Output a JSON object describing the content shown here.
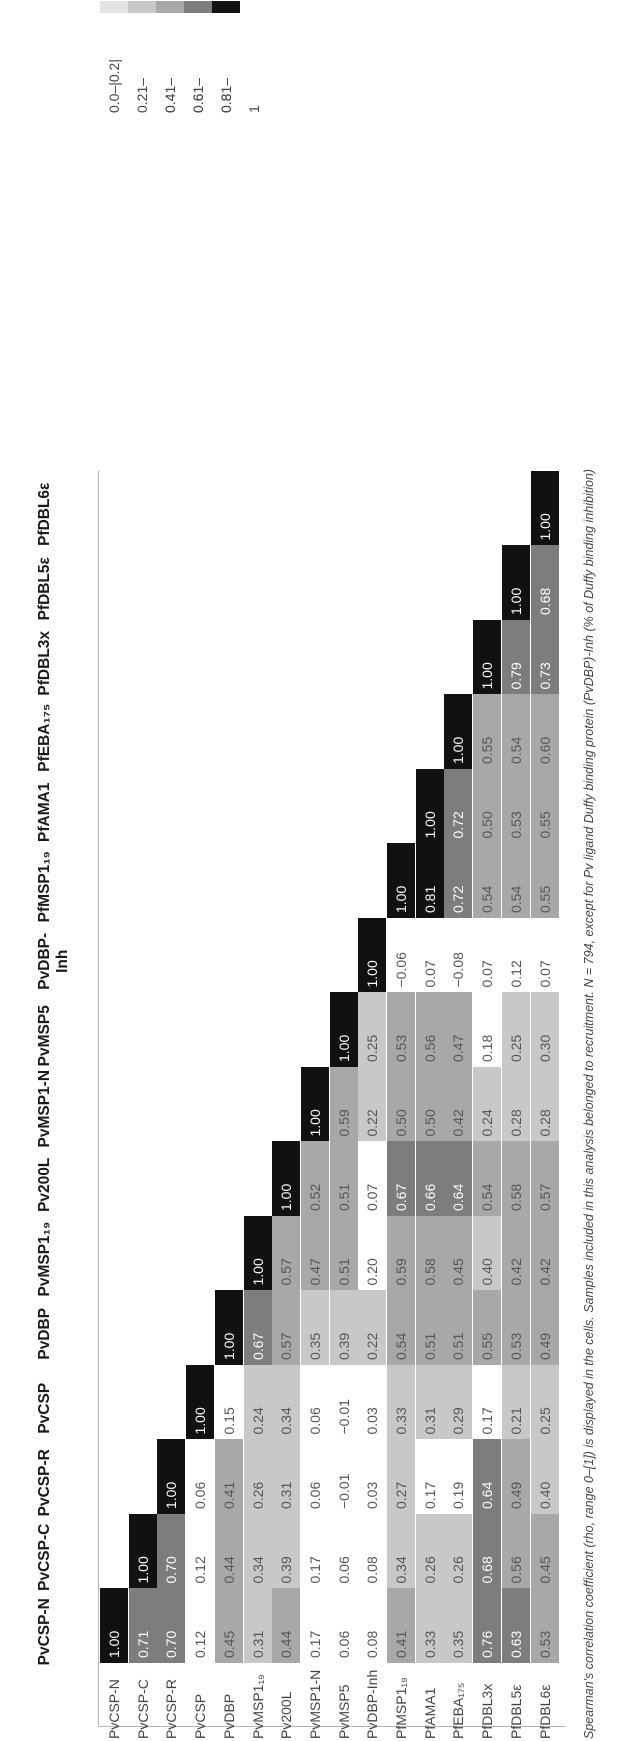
{
  "colors": {
    "scale": [
      "#e3e3e3",
      "#c8c8c8",
      "#a8a8a8",
      "#7d7d7d",
      "#111111"
    ],
    "diagonal": "#111111"
  },
  "title": "",
  "columns": [
    "PvCSP-N",
    "PvCSP-C",
    "PvCSP-R",
    "PvCSP",
    "PvDBP",
    "PvMSP1₁₉",
    "Pv200L",
    "PvMSP1-N",
    "PvMSP5",
    "PvDBP-\nInh",
    "PfMSP1₁₉",
    "PfAMA1",
    "PfEBA₁₇₅",
    "PfDBL3x",
    "PfDBL5ε",
    "PfDBL6ε"
  ],
  "rows": [
    {
      "label": "PvCSP-N",
      "values": [
        "1.00"
      ]
    },
    {
      "label": "PvCSP-C",
      "values": [
        "0.71",
        "1.00"
      ]
    },
    {
      "label": "PvCSP-R",
      "values": [
        "0.70",
        "0.70",
        "1.00"
      ]
    },
    {
      "label": "PvCSP",
      "values": [
        "0.12",
        "0.12",
        "0.06",
        "1.00"
      ]
    },
    {
      "label": "PvDBP",
      "values": [
        "0.45",
        "0.44",
        "0.41",
        "0.15",
        "1.00"
      ]
    },
    {
      "label": "PvMSP1₁₉",
      "values": [
        "0.31",
        "0.34",
        "0.26",
        "0.24",
        "0.67",
        "1.00"
      ]
    },
    {
      "label": "Pv200L",
      "values": [
        "0.44",
        "0.39",
        "0.31",
        "0.34",
        "0.57",
        "0.57",
        "1.00"
      ]
    },
    {
      "label": "PvMSP1-N",
      "values": [
        "0.17",
        "0.17",
        "0.06",
        "0.06",
        "0.35",
        "0.47",
        "0.52",
        "1.00"
      ]
    },
    {
      "label": "PvMSP5",
      "values": [
        "0.06",
        "0.06",
        "−0.01",
        "−0.01",
        "0.39",
        "0.51",
        "0.51",
        "0.59",
        "1.00"
      ]
    },
    {
      "label": "PvDBP-Inh",
      "values": [
        "0.08",
        "0.08",
        "0.03",
        "0.03",
        "0.22",
        "0.20",
        "0.07",
        "0.22",
        "0.25",
        "1.00"
      ]
    },
    {
      "label": "PfMSP1₁₉",
      "values": [
        "0.41",
        "0.34",
        "0.27",
        "0.33",
        "0.54",
        "0.59",
        "0.67",
        "0.50",
        "0.53",
        "−0.06",
        "1.00"
      ]
    },
    {
      "label": "PfAMA1",
      "values": [
        "0.33",
        "0.26",
        "0.17",
        "0.31",
        "0.51",
        "0.58",
        "0.66",
        "0.50",
        "0.56",
        "0.07",
        "0.81",
        "1.00"
      ]
    },
    {
      "label": "PfEBA₁₇₅",
      "values": [
        "0.35",
        "0.26",
        "0.19",
        "0.29",
        "0.51",
        "0.45",
        "0.64",
        "0.42",
        "0.47",
        "−0.08",
        "0.72",
        "0.72",
        "1.00"
      ]
    },
    {
      "label": "PfDBL3x",
      "values": [
        "0.76",
        "0.68",
        "0.64",
        "0.17",
        "0.55",
        "0.40",
        "0.54",
        "0.24",
        "0.18",
        "0.07",
        "0.54",
        "0.50",
        "0.55",
        "1.00"
      ]
    },
    {
      "label": "PfDBL5ε",
      "values": [
        "0.63",
        "0.56",
        "0.49",
        "0.21",
        "0.53",
        "0.42",
        "0.58",
        "0.28",
        "0.25",
        "0.12",
        "0.54",
        "0.53",
        "0.54",
        "0.79",
        "1.00"
      ]
    },
    {
      "label": "PfDBL6ε",
      "values": [
        "0.53",
        "0.45",
        "0.40",
        "0.25",
        "0.49",
        "0.42",
        "0.57",
        "0.28",
        "0.30",
        "0.07",
        "0.55",
        "0.55",
        "0.60",
        "0.73",
        "0.68",
        "1.00"
      ]
    }
  ],
  "legend": [
    {
      "label": "0.0–|0.2|",
      "level": 0
    },
    {
      "label": "0.21–0.4",
      "level": 1
    },
    {
      "label": "0.41–0.6",
      "level": 2
    },
    {
      "label": "0.61–0.8",
      "level": 3
    },
    {
      "label": "0.81–1",
      "level": 4
    }
  ],
  "caption": "Spearman's correlation coefficient (rho, range 0–[1]) is displayed in the cells. Samples included in this analysis belonged to recruitment. N = 794, except for Pv ligand Duffy binding protein (PvDBP)-Inh (% of Duffy binding inhibition)"
}
